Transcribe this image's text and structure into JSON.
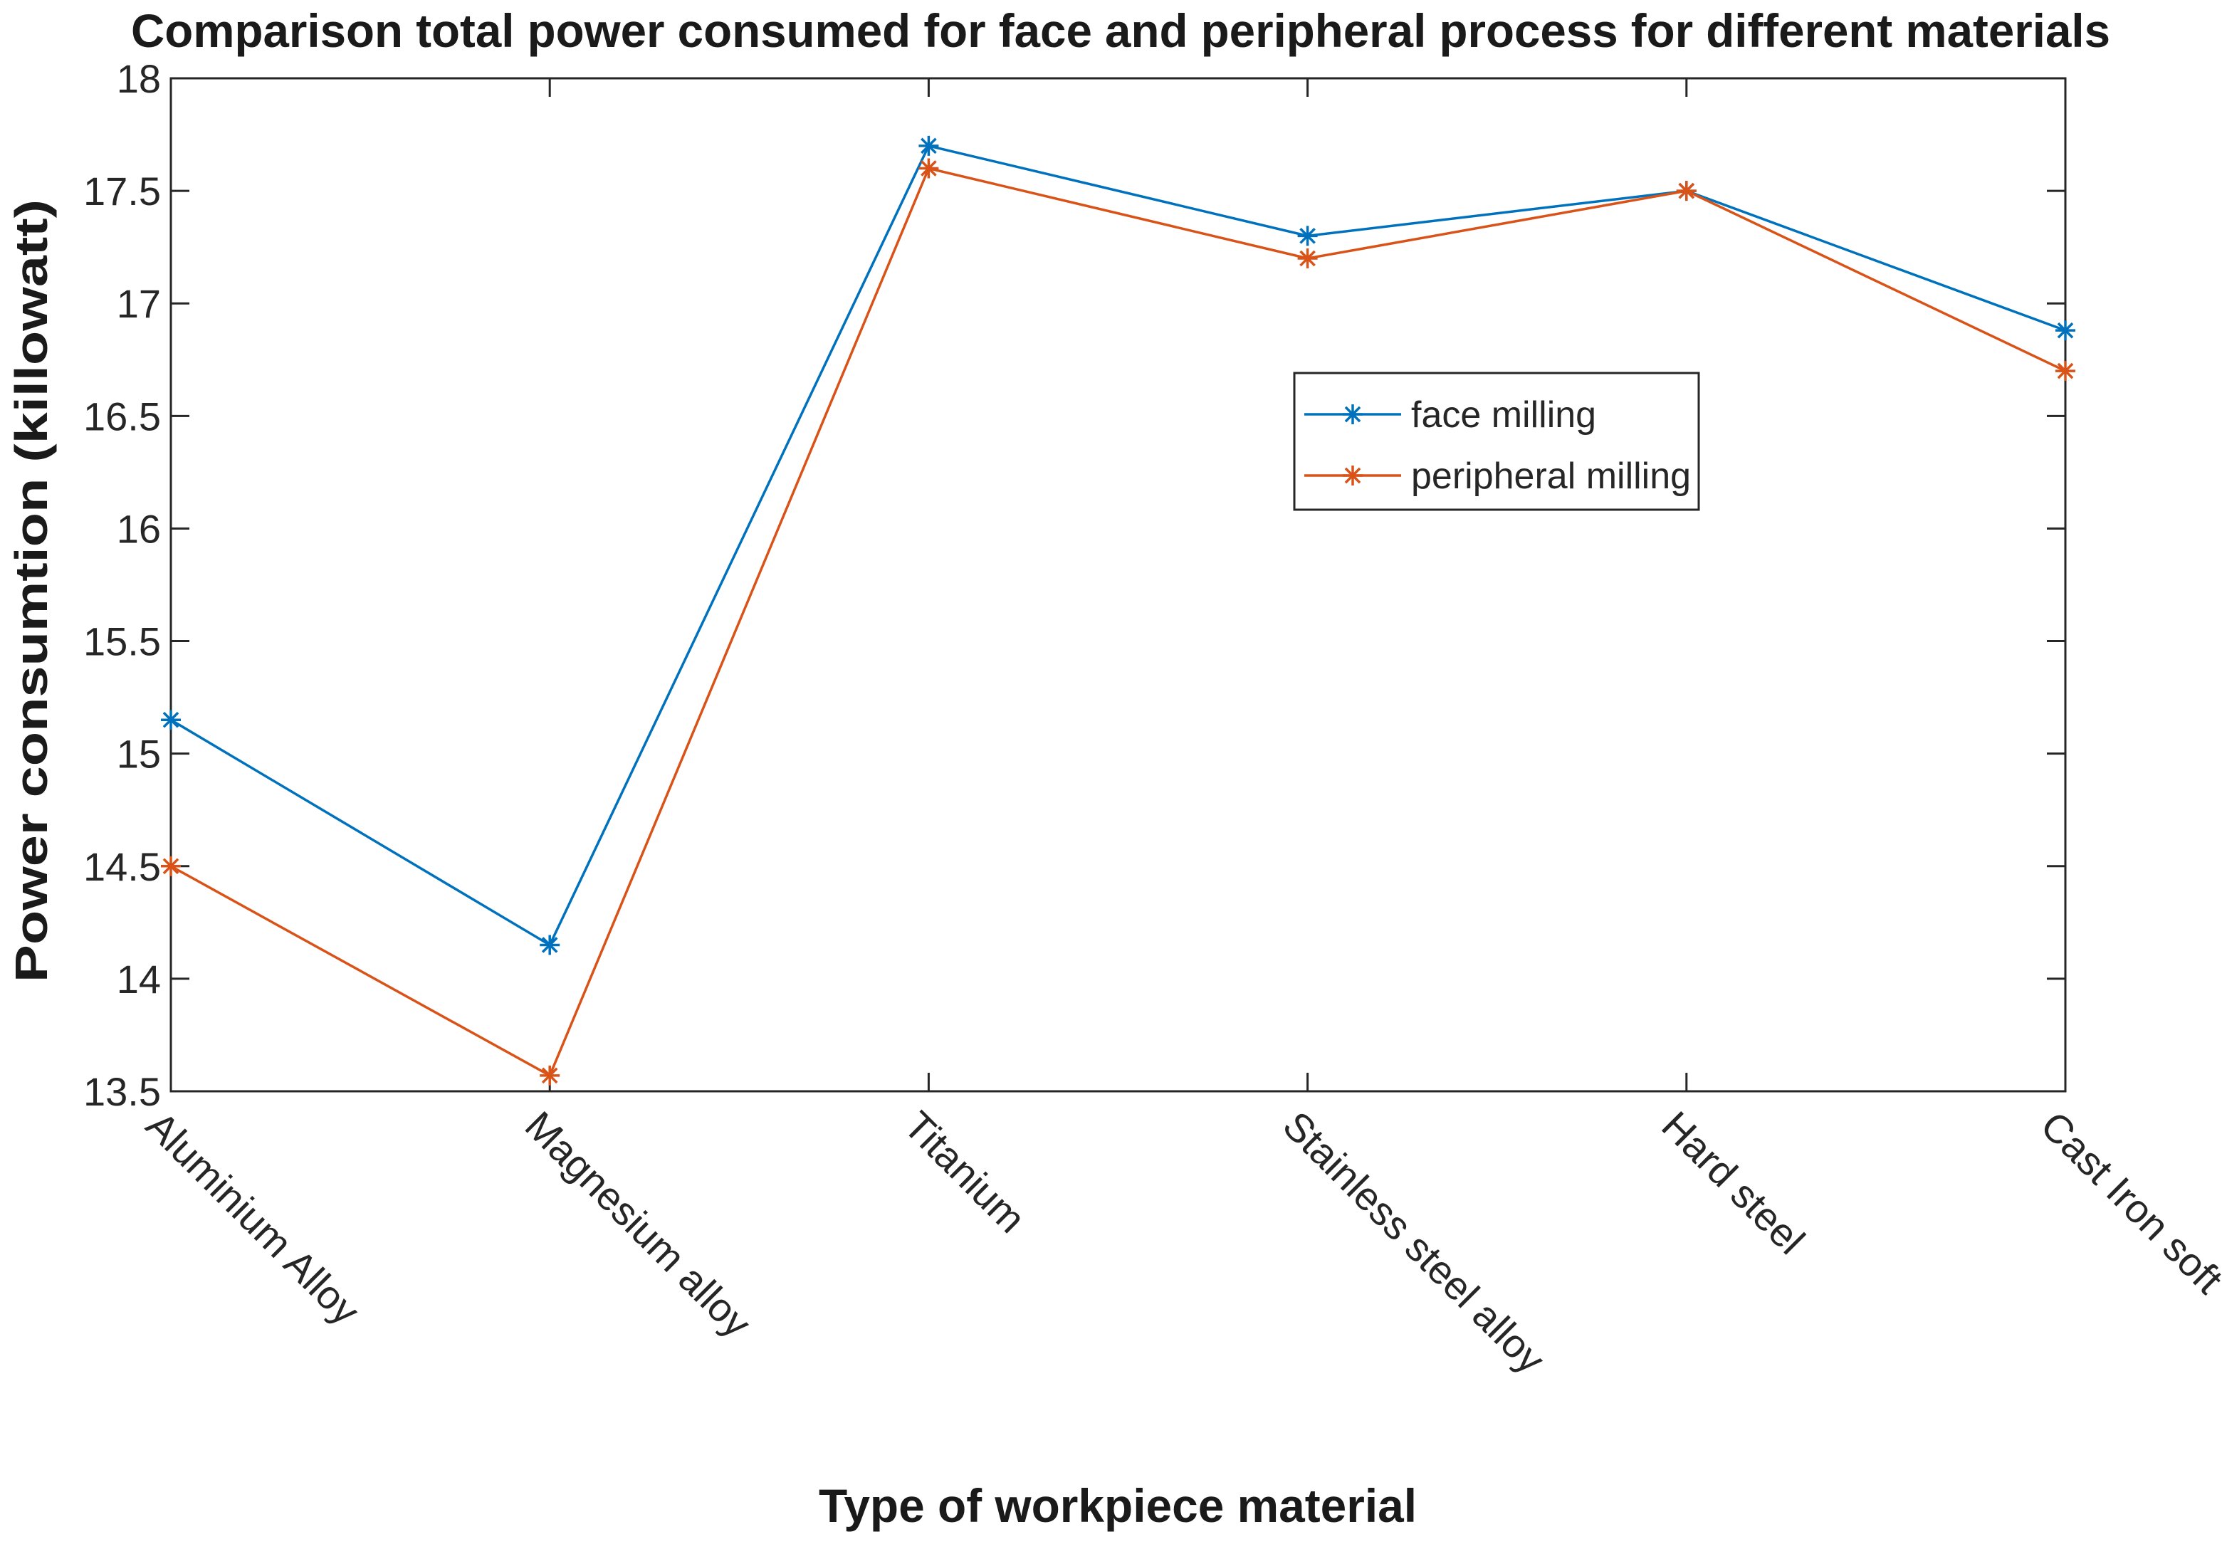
{
  "chart_data": {
    "type": "line",
    "title": "Comparison total power consumed for face and peripheral process for different materials",
    "xlabel": "Type of workpiece material",
    "ylabel": "Power consumtion (killowatt)",
    "categories": [
      "Aluminium Alloy",
      "Magnesium alloy",
      "Titanium",
      "Stainless steel alloy",
      "Hard steel",
      "Cast Iron soft"
    ],
    "ylim": [
      13.5,
      18
    ],
    "yticks": [
      13.5,
      14,
      14.5,
      15,
      15.5,
      16,
      16.5,
      17,
      17.5,
      18
    ],
    "ytick_labels": [
      "13.5",
      "14",
      "14.5",
      "15",
      "15.5",
      "16",
      "16.5",
      "17",
      "17.5",
      "18"
    ],
    "grid": false,
    "legend_position": "center-right",
    "marker": "asterisk",
    "series": [
      {
        "name": "face milling",
        "color": "#0072BD",
        "values": [
          15.15,
          14.15,
          17.7,
          17.3,
          17.5,
          16.88
        ]
      },
      {
        "name": "peripheral milling",
        "color": "#D95319",
        "values": [
          14.5,
          13.57,
          17.6,
          17.2,
          17.5,
          16.7
        ]
      }
    ]
  }
}
